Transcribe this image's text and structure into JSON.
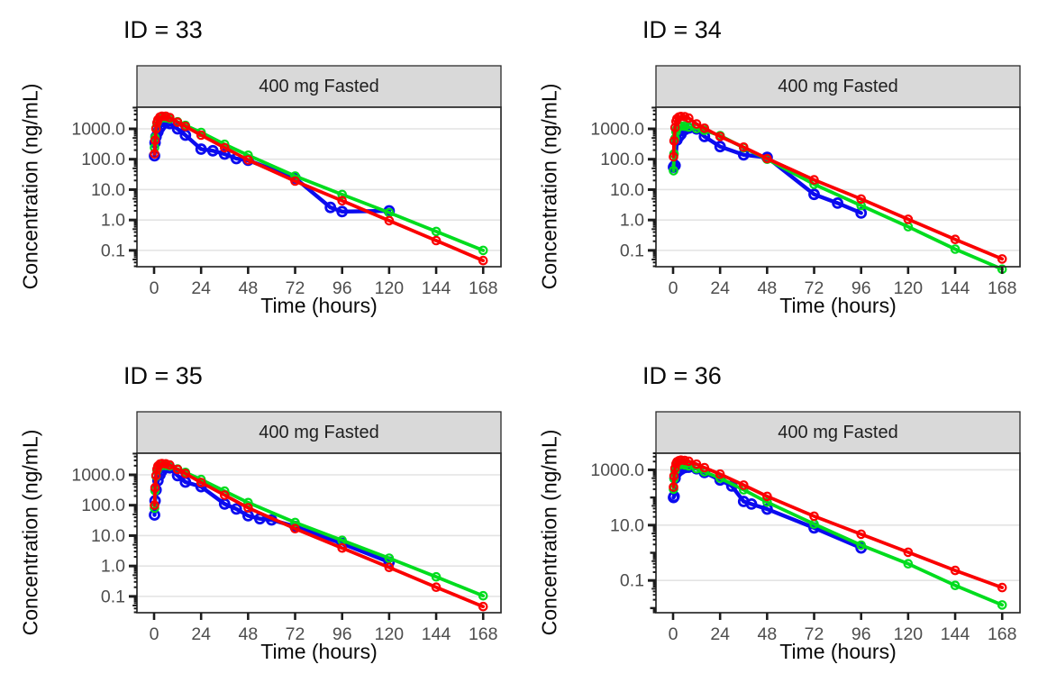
{
  "figure": {
    "strip_label": "400 mg Fasted",
    "x_label": "Time (hours)",
    "y_label": "Concentration (ng/mL)",
    "x_ticks": [
      0,
      24,
      48,
      72,
      96,
      120,
      144,
      168
    ],
    "colors": {
      "observed_blue": "#0B0BEF",
      "prediction_red": "#FA0000",
      "prediction_green": "#00DC1E",
      "strip_bg": "#D9D9D9",
      "panel_bg": "#FFFFFF",
      "grid": "#E3E3E3",
      "tick_label": "#4D4D4D",
      "border": "#2B2B2B"
    }
  },
  "chart_data": [
    {
      "type": "line",
      "title": "ID = 33",
      "strip": "400 mg Fasted",
      "xlabel": "Time (hours)",
      "ylabel": "Concentration (ng/mL)",
      "x_ticks": [
        0,
        24,
        48,
        72,
        96,
        120,
        144,
        168
      ],
      "y_scale": "log10",
      "ylim": [
        0.029,
        5150
      ],
      "y_ticks": {
        "values": [
          1000,
          100,
          10,
          1,
          0.1
        ],
        "labels": [
          "1000.0",
          "100.0",
          "10.0",
          "1.0",
          "0.1"
        ]
      },
      "series": [
        {
          "name": "observed",
          "color": "#0B0BEF",
          "x": [
            0.25,
            0.5,
            1,
            2,
            3,
            4,
            6,
            8,
            12,
            16,
            24,
            30,
            36,
            42,
            48,
            72,
            90,
            96,
            120
          ],
          "y": [
            130,
            350,
            550,
            800,
            1100,
            1350,
            1600,
            1500,
            1000,
            620,
            215,
            190,
            148,
            105,
            92,
            24,
            2.6,
            1.9,
            2.0
          ]
        },
        {
          "name": "prediction-green",
          "color": "#00DC1E",
          "x": [
            0.25,
            0.5,
            1,
            1.5,
            2,
            3,
            4,
            6,
            8,
            12,
            16,
            24,
            36,
            48,
            72,
            96,
            120,
            144,
            168
          ],
          "y": [
            240,
            520,
            1050,
            1550,
            1850,
            2150,
            2300,
            2300,
            2150,
            1700,
            1300,
            760,
            310,
            135,
            28,
            6.9,
            1.75,
            0.42,
            0.1
          ]
        },
        {
          "name": "prediction-red",
          "color": "#FA0000",
          "x": [
            0.25,
            0.5,
            1,
            1.5,
            2,
            3,
            4,
            6,
            8,
            12,
            16,
            24,
            36,
            48,
            72,
            96,
            120,
            144,
            168
          ],
          "y": [
            150,
            420,
            1000,
            1600,
            2000,
            2450,
            2600,
            2580,
            2350,
            1650,
            1200,
            620,
            240,
            95,
            19,
            4.3,
            0.95,
            0.21,
            0.046
          ]
        }
      ]
    },
    {
      "type": "line",
      "title": "ID = 34",
      "strip": "400 mg Fasted",
      "xlabel": "Time (hours)",
      "ylabel": "Concentration (ng/mL)",
      "x_ticks": [
        0,
        24,
        48,
        72,
        96,
        120,
        144,
        168
      ],
      "y_scale": "log10",
      "ylim": [
        0.029,
        5150
      ],
      "y_ticks": {
        "values": [
          1000,
          100,
          10,
          1,
          0.1
        ],
        "labels": [
          "1000.0",
          "100.0",
          "10.0",
          "1.0",
          "0.1"
        ]
      },
      "series": [
        {
          "name": "observed",
          "color": "#0B0BEF",
          "x": [
            0.25,
            0.5,
            1,
            2,
            3,
            4,
            6,
            8,
            12,
            16,
            24,
            36,
            48,
            72,
            84,
            96
          ],
          "y": [
            55,
            58,
            62,
            430,
            560,
            660,
            950,
            1060,
            990,
            560,
            260,
            140,
            115,
            7,
            3.6,
            1.7
          ]
        },
        {
          "name": "prediction-green",
          "color": "#00DC1E",
          "x": [
            0.25,
            0.5,
            1,
            1.5,
            2,
            3,
            4,
            6,
            8,
            12,
            16,
            24,
            36,
            48,
            72,
            96,
            120,
            144,
            168
          ],
          "y": [
            42,
            150,
            480,
            800,
            1000,
            1180,
            1230,
            1220,
            1150,
            1020,
            890,
            600,
            240,
            100,
            15,
            3.0,
            0.6,
            0.11,
            0.024
          ]
        },
        {
          "name": "prediction-red",
          "color": "#FA0000",
          "x": [
            0.25,
            0.5,
            1,
            1.5,
            2,
            3,
            4,
            6,
            8,
            12,
            16,
            24,
            36,
            48,
            72,
            96,
            120,
            144,
            168
          ],
          "y": [
            120,
            400,
            1100,
            1750,
            2150,
            2450,
            2550,
            2520,
            2250,
            1450,
            1050,
            560,
            250,
            105,
            21,
            4.9,
            1.05,
            0.23,
            0.052
          ]
        }
      ]
    },
    {
      "type": "line",
      "title": "ID = 35",
      "strip": "400 mg Fasted",
      "xlabel": "Time (hours)",
      "ylabel": "Concentration (ng/mL)",
      "x_ticks": [
        0,
        24,
        48,
        72,
        96,
        120,
        144,
        168
      ],
      "y_scale": "log10",
      "ylim": [
        0.029,
        5150
      ],
      "y_ticks": {
        "values": [
          1000,
          100,
          10,
          1,
          0.1
        ],
        "labels": [
          "1000.0",
          "100.0",
          "10.0",
          "1.0",
          "0.1"
        ]
      },
      "series": [
        {
          "name": "observed",
          "color": "#0B0BEF",
          "x": [
            0.25,
            0.5,
            1,
            2,
            3,
            4,
            6,
            8,
            12,
            16,
            24,
            36,
            42,
            48,
            54,
            60,
            72,
            96,
            120
          ],
          "y": [
            48,
            140,
            320,
            650,
            1000,
            1350,
            1800,
            1700,
            950,
            580,
            410,
            110,
            75,
            45,
            36,
            33,
            20,
            5.5,
            1.35
          ]
        },
        {
          "name": "prediction-green",
          "color": "#00DC1E",
          "x": [
            0.25,
            0.5,
            1,
            1.5,
            2,
            3,
            4,
            6,
            8,
            12,
            16,
            24,
            36,
            48,
            72,
            96,
            120,
            144,
            168
          ],
          "y": [
            80,
            300,
            900,
            1400,
            1700,
            1950,
            2050,
            2050,
            1950,
            1550,
            1200,
            700,
            290,
            122,
            27,
            7.0,
            1.8,
            0.44,
            0.105
          ]
        },
        {
          "name": "prediction-red",
          "color": "#FA0000",
          "x": [
            0.25,
            0.5,
            1,
            1.5,
            2,
            3,
            4,
            6,
            8,
            12,
            16,
            24,
            36,
            48,
            72,
            96,
            120,
            144,
            168
          ],
          "y": [
            100,
            380,
            950,
            1550,
            1950,
            2250,
            2350,
            2300,
            2100,
            1500,
            1100,
            560,
            215,
            82,
            17,
            3.9,
            0.9,
            0.2,
            0.046
          ]
        }
      ]
    },
    {
      "type": "line",
      "title": "ID = 36",
      "strip": "400 mg Fasted",
      "xlabel": "Time (hours)",
      "ylabel": "Concentration (ng/mL)",
      "x_ticks": [
        0,
        24,
        48,
        72,
        96,
        120,
        144,
        168
      ],
      "y_scale": "log10",
      "ylim": [
        0.0068,
        4000
      ],
      "y_ticks": {
        "values": [
          1000,
          10,
          0.1
        ],
        "labels": [
          "1000.0",
          "10.0",
          "0.1"
        ]
      },
      "series": [
        {
          "name": "observed",
          "color": "#0B0BEF",
          "x": [
            0.25,
            0.5,
            1,
            2,
            3,
            4,
            6,
            8,
            12,
            16,
            24,
            30,
            36,
            40,
            48,
            72,
            96
          ],
          "y": [
            100,
            110,
            500,
            800,
            950,
            1050,
            1200,
            1250,
            1100,
            800,
            430,
            260,
            72,
            58,
            38,
            8,
            1.5
          ]
        },
        {
          "name": "prediction-green",
          "color": "#00DC1E",
          "x": [
            0.25,
            0.5,
            1,
            1.5,
            2,
            3,
            4,
            6,
            8,
            12,
            16,
            24,
            36,
            48,
            72,
            96,
            120,
            144,
            168
          ],
          "y": [
            200,
            480,
            920,
            1250,
            1450,
            1550,
            1560,
            1520,
            1400,
            1100,
            850,
            500,
            190,
            68,
            11,
            1.9,
            0.4,
            0.066,
            0.013
          ]
        },
        {
          "name": "prediction-red",
          "color": "#FA0000",
          "x": [
            0.25,
            0.5,
            1,
            1.5,
            2,
            3,
            4,
            6,
            8,
            12,
            16,
            24,
            36,
            48,
            72,
            96,
            120,
            144,
            168
          ],
          "y": [
            240,
            600,
            1150,
            1650,
            1950,
            2150,
            2250,
            2200,
            2050,
            1600,
            1200,
            700,
            280,
            110,
            21,
            4.7,
            1.05,
            0.23,
            0.055
          ]
        }
      ]
    }
  ]
}
